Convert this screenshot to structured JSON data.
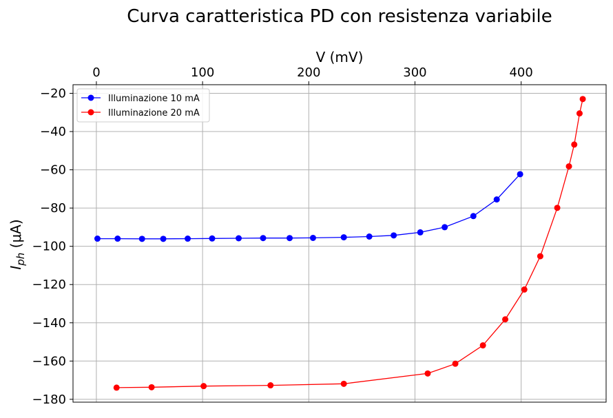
{
  "chart_data": {
    "type": "line",
    "title": "Curva caratteristica PD con resistenza variabile",
    "xlabel": "V (mV)",
    "ylabel": "I_ph (μA)",
    "xlim": [
      -22,
      480
    ],
    "ylim": [
      -181.5,
      -15.5
    ],
    "x_ticks": [
      0,
      100,
      200,
      300,
      400
    ],
    "y_ticks": [
      -20,
      -40,
      -60,
      -80,
      -100,
      -120,
      -140,
      -160,
      -180
    ],
    "x_axis_position": "top",
    "grid": true,
    "legend_position": "top-left",
    "series": [
      {
        "name": "Illuminazione 10 mA",
        "color": "#0000ff",
        "x": [
          1,
          20,
          43,
          63,
          86,
          109,
          134,
          157,
          182,
          204,
          233,
          257,
          280,
          305,
          328,
          355,
          377,
          399
        ],
        "y": [
          -96.0,
          -96.0,
          -96.1,
          -96.1,
          -96.0,
          -95.9,
          -95.8,
          -95.7,
          -95.7,
          -95.6,
          -95.3,
          -94.9,
          -94.3,
          -92.7,
          -90.0,
          -84.2,
          -75.5,
          -62.3
        ]
      },
      {
        "name": "Illuminazione 20 mA",
        "color": "#ff0000",
        "x": [
          19,
          52,
          101,
          164,
          233,
          312,
          338,
          364,
          385,
          403,
          418,
          434,
          445,
          450,
          455,
          458
        ],
        "y": [
          -173.9,
          -173.7,
          -173.1,
          -172.7,
          -171.9,
          -166.5,
          -161.4,
          -151.8,
          -138.2,
          -122.6,
          -105.2,
          -79.9,
          -58.2,
          -46.8,
          -30.5,
          -23.0
        ]
      }
    ]
  }
}
